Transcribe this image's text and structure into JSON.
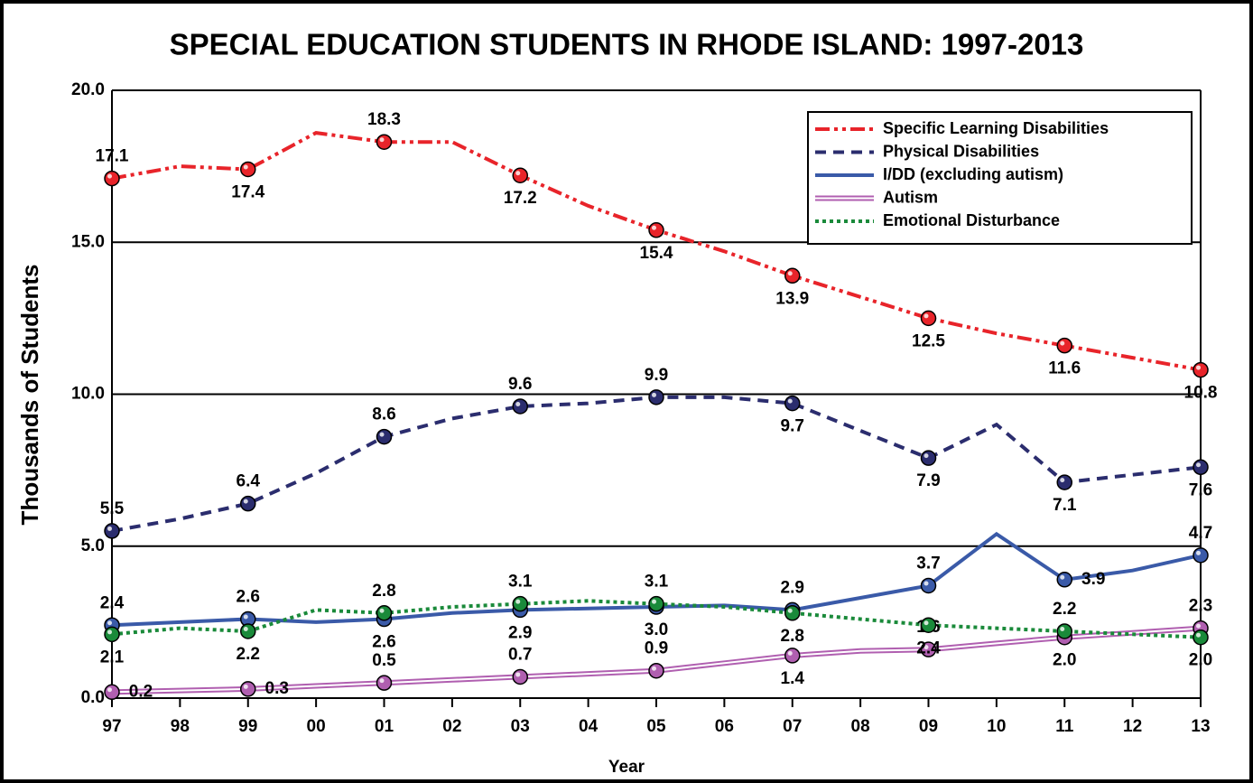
{
  "chart_data": {
    "type": "line",
    "title": "SPECIAL EDUCATION STUDENTS IN RHODE ISLAND: 1997-2013",
    "xlabel": "Year",
    "ylabel": "Thousands of Students",
    "categories": [
      "97",
      "98",
      "99",
      "00",
      "01",
      "02",
      "03",
      "04",
      "05",
      "06",
      "07",
      "08",
      "09",
      "10",
      "11",
      "12",
      "13"
    ],
    "ylim": [
      0,
      20
    ],
    "yticks": [
      {
        "value": 0,
        "label": "0.0"
      },
      {
        "value": 5,
        "label": "5.0"
      },
      {
        "value": 10,
        "label": "10.0"
      },
      {
        "value": 15,
        "label": "15.0"
      },
      {
        "value": 20,
        "label": "20.0"
      }
    ],
    "grid": true,
    "legend": "upper right",
    "series": [
      {
        "name": "Specific Learning Disabilities",
        "color": "#e8242a",
        "style": "dash-dot-dot",
        "values": [
          17.1,
          17.5,
          17.4,
          18.6,
          18.3,
          18.3,
          17.2,
          16.2,
          15.4,
          14.7,
          13.9,
          13.2,
          12.5,
          12.0,
          11.6,
          11.2,
          10.8
        ],
        "value_labels": [
          "17.1",
          null,
          "17.4",
          null,
          "18.3",
          null,
          "17.2",
          null,
          "15.4",
          null,
          "13.9",
          null,
          "12.5",
          null,
          "11.6",
          null,
          "10.8"
        ]
      },
      {
        "name": "Physical Disabilities",
        "color": "#2b2d6e",
        "style": "dashed",
        "values": [
          5.5,
          5.9,
          6.4,
          7.4,
          8.6,
          9.2,
          9.6,
          9.7,
          9.9,
          9.9,
          9.7,
          8.8,
          7.9,
          9.0,
          7.1,
          7.35,
          7.6
        ],
        "value_labels": [
          "5.5",
          null,
          "6.4",
          null,
          "8.6",
          null,
          "9.6",
          null,
          "9.9",
          null,
          "9.7",
          null,
          "7.9",
          null,
          "7.1",
          null,
          "7.6"
        ]
      },
      {
        "name": "I/DD (excluding autism)",
        "color": "#3a5aa8",
        "style": "solid",
        "values": [
          2.4,
          2.5,
          2.6,
          2.5,
          2.6,
          2.8,
          2.9,
          2.95,
          3.0,
          3.05,
          2.9,
          3.3,
          3.7,
          5.4,
          3.9,
          4.2,
          4.7
        ],
        "value_labels": [
          "2.4",
          null,
          "2.6",
          null,
          "2.6",
          null,
          "2.9",
          null,
          "3.0",
          null,
          "2.9",
          null,
          "3.7",
          null,
          "3.9",
          null,
          "4.7"
        ]
      },
      {
        "name": "Autism",
        "color": "#b05fb0",
        "style": "double",
        "values": [
          0.2,
          0.25,
          0.3,
          0.4,
          0.5,
          0.6,
          0.7,
          0.8,
          0.9,
          1.15,
          1.4,
          1.55,
          1.6,
          1.8,
          2.0,
          2.15,
          2.3
        ],
        "value_labels": [
          "0.2",
          null,
          "0.3",
          null,
          "0.5",
          null,
          "0.7",
          null,
          "0.9",
          null,
          "1.4",
          null,
          "1.6",
          null,
          "2.0",
          null,
          "2.3"
        ]
      },
      {
        "name": "Emotional Disturbance",
        "color": "#1a8a3a",
        "style": "dotted",
        "values": [
          2.1,
          2.3,
          2.2,
          2.9,
          2.8,
          3.0,
          3.1,
          3.2,
          3.1,
          3.0,
          2.8,
          2.6,
          2.4,
          2.3,
          2.2,
          2.1,
          2.0
        ],
        "value_labels": [
          "2.1",
          null,
          "2.2",
          null,
          "2.8",
          null,
          "3.1",
          null,
          "3.1",
          null,
          "2.8",
          null,
          "2.4",
          null,
          "2.2",
          null,
          "2.0"
        ]
      }
    ]
  }
}
